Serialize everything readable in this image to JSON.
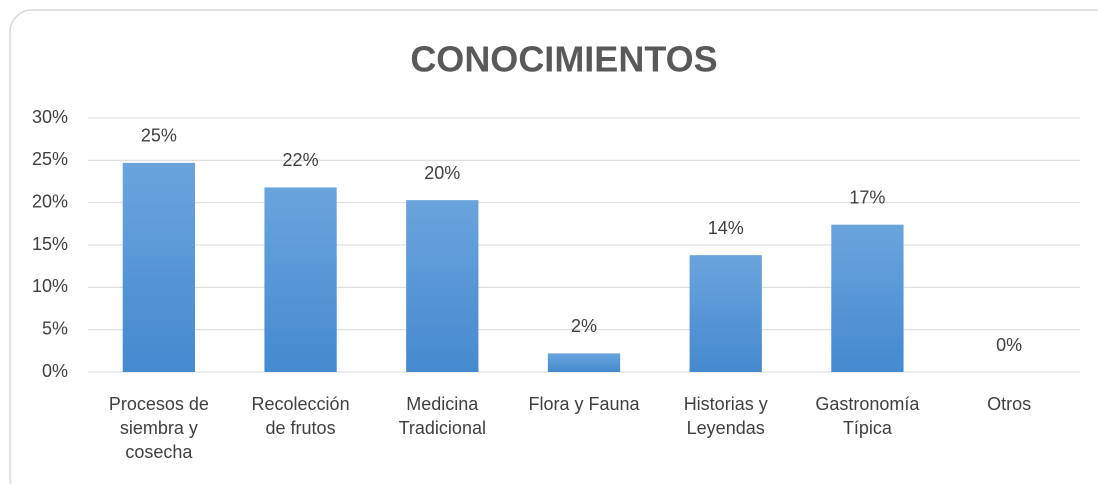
{
  "chart_data": {
    "type": "bar",
    "title": "CONOCIMIENTOS",
    "categories": [
      "Procesos de siembra y cosecha",
      "Recolección de frutos",
      "Medicina Tradicional",
      "Flora y Fauna",
      "Historias y Leyendas",
      "Gastronomía Típica",
      "Otros"
    ],
    "values": [
      24.7,
      21.8,
      20.3,
      2.2,
      13.8,
      17.4,
      0
    ],
    "value_labels": [
      "25%",
      "22%",
      "20%",
      "2%",
      "14%",
      "17%",
      "0%"
    ],
    "color": "#5b9bd5",
    "ylim": [
      0,
      30
    ],
    "yticks": [
      {
        "value": 0,
        "label": "0%"
      },
      {
        "value": 5,
        "label": "5%"
      },
      {
        "value": 10,
        "label": "10%"
      },
      {
        "value": 15,
        "label": "15%"
      },
      {
        "value": 20,
        "label": "20%"
      },
      {
        "value": 25,
        "label": "25%"
      },
      {
        "value": 30,
        "label": "30%"
      }
    ],
    "grid": true
  }
}
